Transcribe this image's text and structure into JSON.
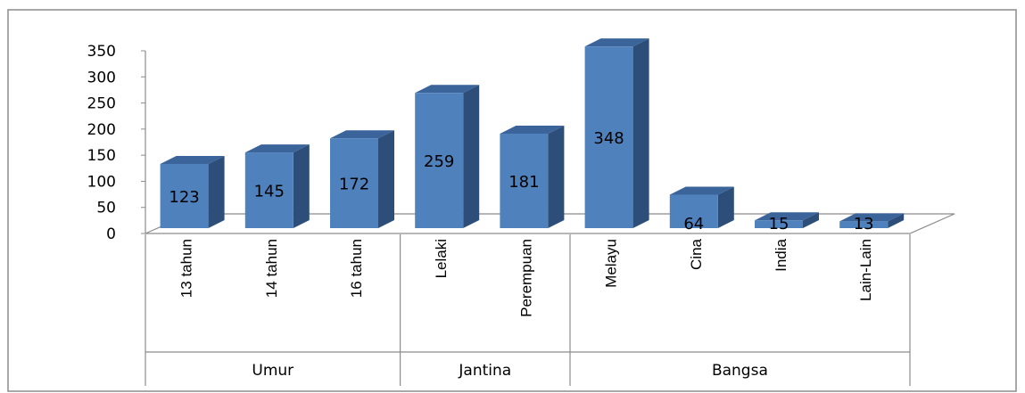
{
  "chart_data": {
    "type": "bar",
    "categories": [
      "13 tahun",
      "14 tahun",
      "16 tahun",
      "Lelaki",
      "Perempuan",
      "Melayu",
      "Cina",
      "India",
      "Lain-Lain"
    ],
    "groups": [
      {
        "label": "Umur",
        "start": 0,
        "end": 2
      },
      {
        "label": "Jantina",
        "start": 3,
        "end": 4
      },
      {
        "label": "Bangsa",
        "start": 5,
        "end": 8
      }
    ],
    "values": [
      123,
      145,
      172,
      259,
      181,
      348,
      64,
      15,
      13
    ],
    "data_labels": [
      "123",
      "145",
      "172",
      "259",
      "181",
      "348",
      "64",
      "15",
      "13"
    ],
    "ylim": [
      0,
      350
    ],
    "yticks": [
      "0",
      "50",
      "100",
      "150",
      "200",
      "250",
      "300",
      "350"
    ],
    "title": "",
    "xlabel": "",
    "ylabel": "",
    "bar_color": "#4f81bd",
    "bar_side_color": "#2e4e7a",
    "bar_top_color": "#3a649a",
    "grid": false,
    "legend": false
  }
}
